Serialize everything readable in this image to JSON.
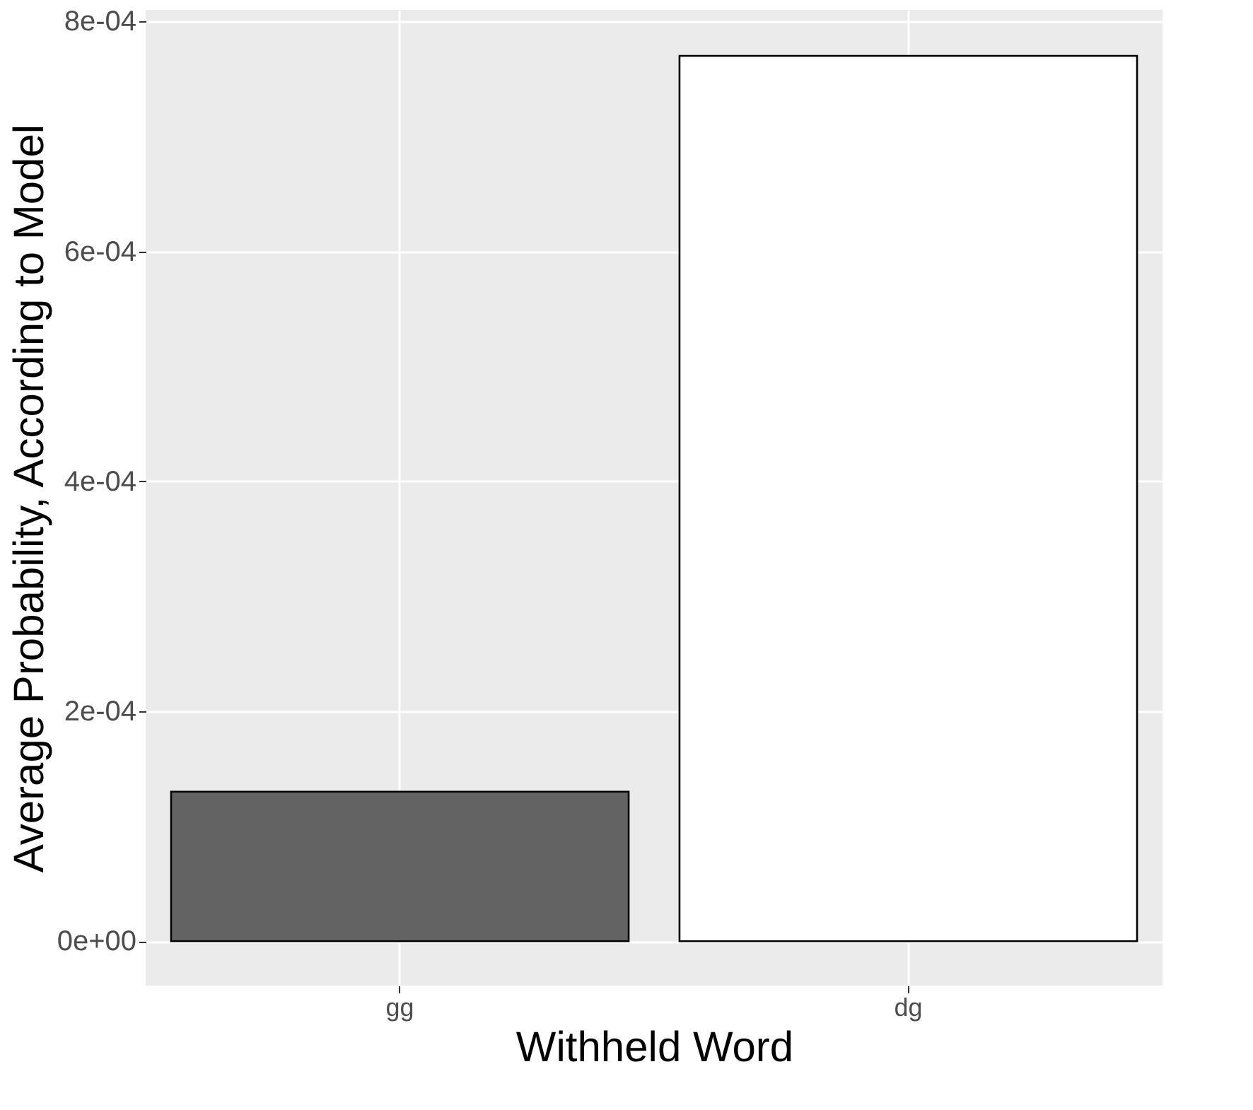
{
  "chart_data": {
    "type": "bar",
    "xlabel": "Withheld Word",
    "ylabel": "Average Probability, According to Model",
    "categories": [
      "gg",
      "dg"
    ],
    "values": [
      0.00013,
      0.00077
    ],
    "colors": [
      "#636363",
      "#ffffff"
    ],
    "ylim": [
      -3.86e-05,
      0.00081
    ],
    "yticks": [
      {
        "value": 0,
        "label": "0e+00"
      },
      {
        "value": 0.0002,
        "label": "2e-04"
      },
      {
        "value": 0.0004,
        "label": "4e-04"
      },
      {
        "value": 0.0006,
        "label": "6e-04"
      },
      {
        "value": 0.0008,
        "label": "8e-04"
      }
    ],
    "grid": true
  }
}
